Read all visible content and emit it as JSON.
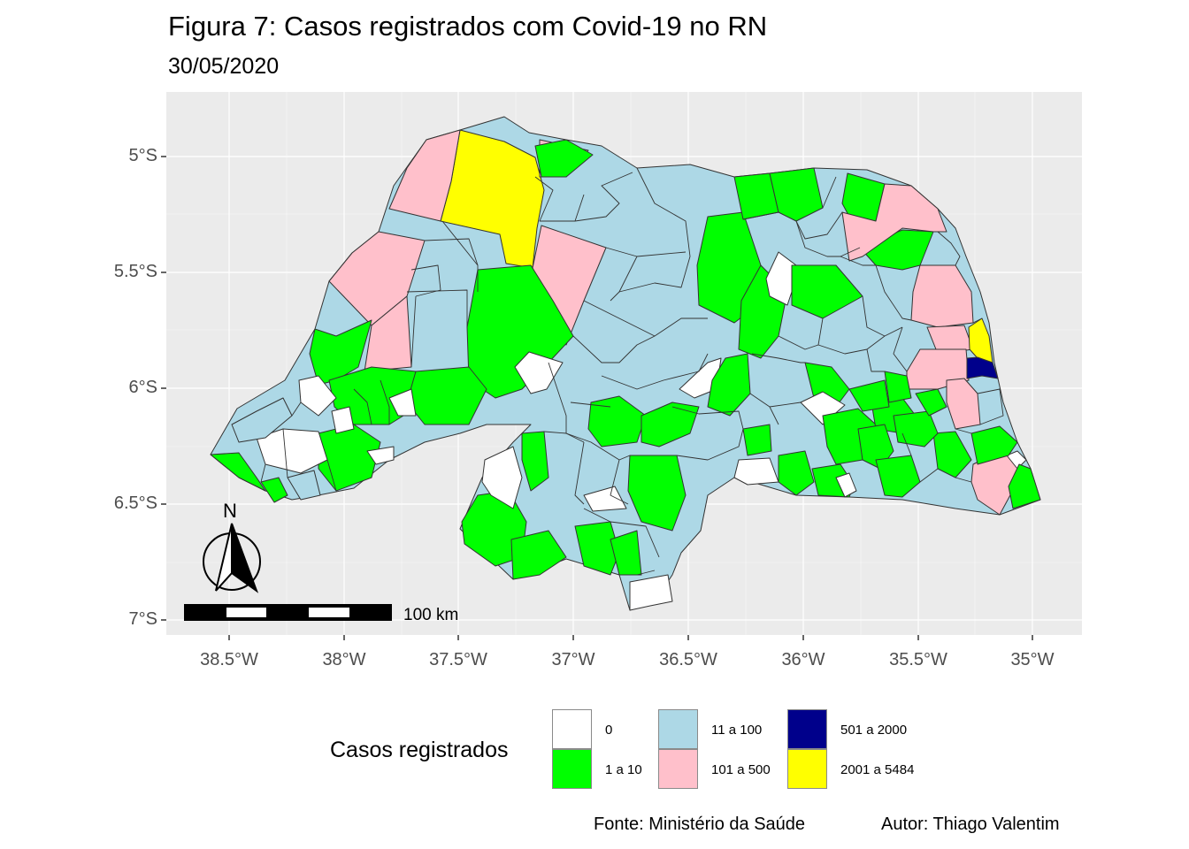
{
  "title": "Figura 7: Casos registrados com Covid-19 no RN",
  "subtitle": "30/05/2020",
  "axes": {
    "y_ticks": [
      "5°S",
      "5.5°S",
      "6°S",
      "6.5°S",
      "7°S"
    ],
    "x_ticks": [
      "38.5°W",
      "38°W",
      "37.5°W",
      "37°W",
      "36.5°W",
      "36°W",
      "35.5°W",
      "35°W"
    ]
  },
  "north_arrow_label": "N",
  "scale_bar_label": "100 km",
  "legend": {
    "title": "Casos registrados",
    "items": [
      {
        "label": "0",
        "color": "#ffffff"
      },
      {
        "label": "1 a 10",
        "color": "#00ff00"
      },
      {
        "label": "11 a 100",
        "color": "#add8e6"
      },
      {
        "label": "101 a 500",
        "color": "#ffc0cb"
      },
      {
        "label": "501 a 2000",
        "color": "#00008b"
      },
      {
        "label": "2001 a 5484",
        "color": "#ffff00"
      }
    ]
  },
  "captions": {
    "source": "Fonte: Ministério da Saúde",
    "author": "Autor: Thiago Valentim"
  },
  "colors": {
    "panel_background": "#ebebeb",
    "grid": "#ffffff",
    "border": "#333333"
  }
}
